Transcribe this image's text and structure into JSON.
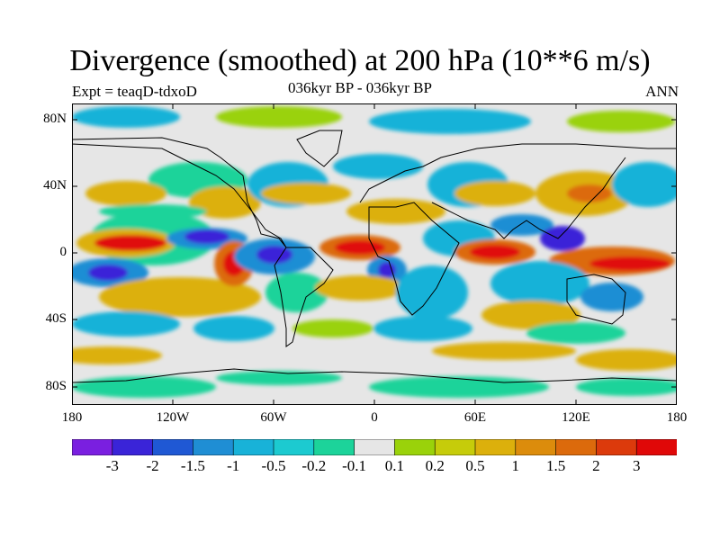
{
  "title": "Divergence (smoothed) at 200 hPa (10**6 m/s)",
  "subtitle": "036kyr BP - 036kyr BP",
  "experiment": "Expt = teaqD-tdxoD",
  "season": "ANN",
  "lat_axis": [
    "80N",
    "40N",
    "0",
    "40S",
    "80S"
  ],
  "lon_axis": [
    "180",
    "120W",
    "60W",
    "0",
    "60E",
    "120E",
    "180"
  ],
  "colorbar": {
    "labels": [
      "-3",
      "-2",
      "-1.5",
      "-1",
      "-0.5",
      "-0.2",
      "-0.1",
      "0.1",
      "0.2",
      "0.5",
      "1",
      "1.5",
      "2",
      "3"
    ],
    "colors": [
      "#7a1fe0",
      "#3a24d8",
      "#1f58d4",
      "#1f8ed4",
      "#18b2d8",
      "#1ccad0",
      "#1cd39a",
      "#e6e6e6",
      "#9ad20a",
      "#c6cc0a",
      "#dcb00c",
      "#dc8c0c",
      "#dc6a0c",
      "#dc3a0c",
      "#e00808"
    ]
  },
  "map_colors": {
    "neutral": "#e6e6e6",
    "neg_weak": "#1cd39a",
    "neg_mid": "#18b2d8",
    "neg_strong": "#1f8ed4",
    "neg_xstrong": "#3a24d8",
    "pos_weak": "#9ad20a",
    "pos_mid": "#dcb00c",
    "pos_strong": "#dc6a0c",
    "pos_xstrong": "#e00808"
  }
}
